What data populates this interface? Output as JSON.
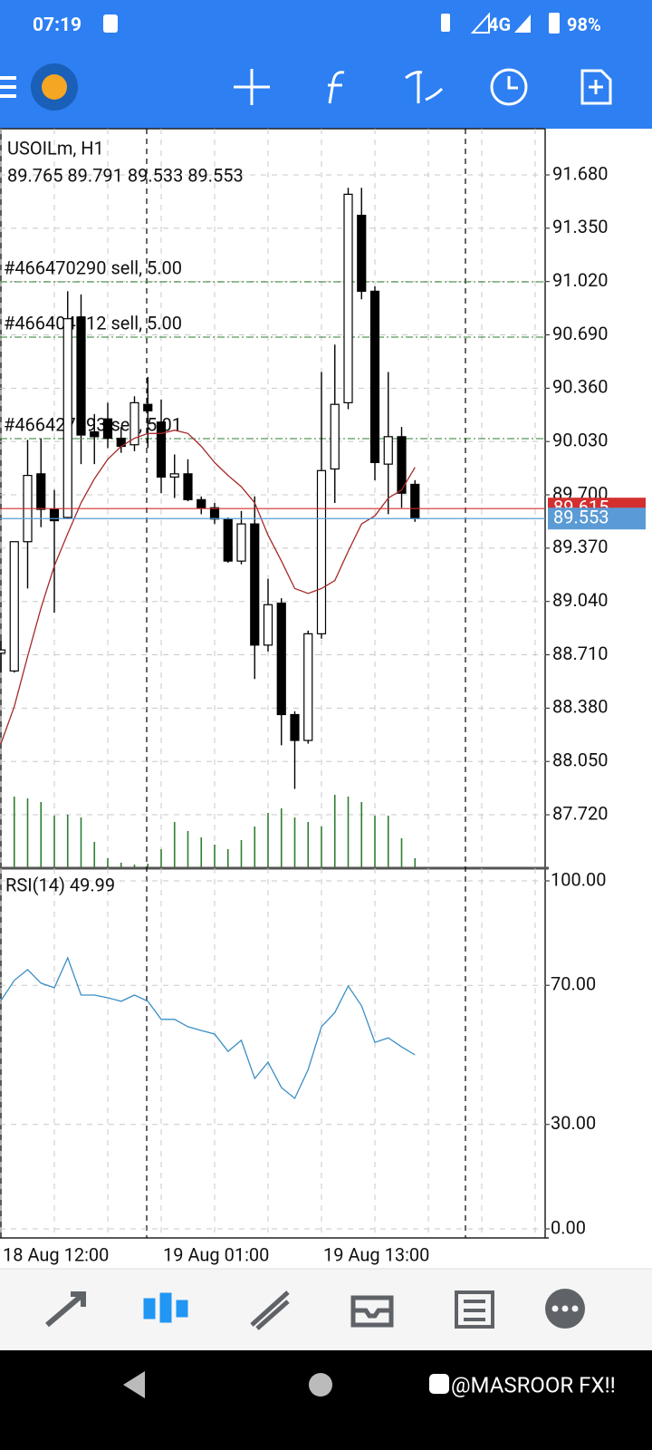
{
  "status_bar": {
    "time": "07:19",
    "network": "4G",
    "battery": "98%"
  },
  "watermark": "@MASROOR FX!!",
  "chart_data": [
    {
      "type": "candlestick",
      "title": "USOILm, H1",
      "subtitle": "89.765 89.791 89.533 89.553",
      "categories": [
        "18 Aug 12:00",
        null,
        null,
        null,
        null,
        null,
        null,
        null,
        null,
        null,
        null,
        null,
        "19 Aug 01:00",
        null,
        null,
        null,
        null,
        null,
        null,
        null,
        null,
        null,
        null,
        null,
        "19 Aug 13:00",
        null,
        null,
        null,
        null,
        null,
        null,
        null
      ],
      "open": [
        88.72,
        88.61,
        89.41,
        89.83,
        89.61,
        89.56,
        90.8,
        90.09,
        90.17,
        90.05,
        90.01,
        90.26,
        90.15,
        89.81,
        89.83,
        89.67,
        89.62,
        89.55,
        89.29,
        89.52,
        88.77,
        89.03,
        88.34,
        88.18,
        88.84,
        89.86,
        90.27,
        91.43,
        90.96,
        89.89,
        90.06,
        89.765
      ],
      "high": [
        88.8,
        89.41,
        90.04,
        90.05,
        89.73,
        90.96,
        90.94,
        90.2,
        90.27,
        90.12,
        90.31,
        90.43,
        90.29,
        89.95,
        89.92,
        89.69,
        89.65,
        89.56,
        89.6,
        89.69,
        89.18,
        89.06,
        88.36,
        88.86,
        90.46,
        90.63,
        91.6,
        91.6,
        90.99,
        90.46,
        90.12,
        89.791
      ],
      "low": [
        88.6,
        88.6,
        89.12,
        89.5,
        88.97,
        89.55,
        89.89,
        89.89,
        89.99,
        89.96,
        89.97,
        89.99,
        89.71,
        89.68,
        89.66,
        89.58,
        89.52,
        89.28,
        89.27,
        88.56,
        88.73,
        88.15,
        87.88,
        88.16,
        88.81,
        89.65,
        90.23,
        90.91,
        89.79,
        89.58,
        89.62,
        89.533
      ],
      "close": [
        88.74,
        89.41,
        89.82,
        89.61,
        89.54,
        90.79,
        90.07,
        90.06,
        90.05,
        90.0,
        90.27,
        90.22,
        89.81,
        89.83,
        89.67,
        89.62,
        89.55,
        89.29,
        89.52,
        88.77,
        89.02,
        88.34,
        88.18,
        88.84,
        89.85,
        90.26,
        91.56,
        90.96,
        89.9,
        90.06,
        89.71,
        89.553
      ],
      "color_up": "#ffffff",
      "color_down": "#000000",
      "ma": {
        "color": "#a52a2a",
        "values": [
          88.16,
          88.39,
          88.7,
          89.0,
          89.26,
          89.46,
          89.65,
          89.8,
          89.92,
          90.0,
          90.05,
          90.08,
          90.08,
          90.1,
          90.08,
          90.0,
          89.9,
          89.82,
          89.75,
          89.65,
          89.45,
          89.29,
          89.12,
          89.09,
          89.12,
          89.17,
          89.35,
          89.52,
          89.57,
          89.68,
          89.73,
          89.87
        ]
      },
      "volume": {
        "color": "#2e7d32",
        "ylim": [
          0,
          120
        ],
        "values": [
          0,
          78,
          76,
          72,
          57,
          58,
          55,
          28,
          10,
          5,
          3,
          4,
          20,
          50,
          40,
          33,
          25,
          20,
          30,
          45,
          60,
          65,
          55,
          50,
          45,
          80,
          78,
          72,
          57,
          57,
          32,
          10
        ]
      },
      "ylim": [
        87.395,
        91.966
      ],
      "yticks": [
        {
          "value": 91.68,
          "label": "91.680"
        },
        {
          "value": 91.35,
          "label": "91.350"
        },
        {
          "value": 91.02,
          "label": "91.020"
        },
        {
          "value": 90.69,
          "label": "90.690"
        },
        {
          "value": 90.36,
          "label": "90.360"
        },
        {
          "value": 90.03,
          "label": "90.030"
        },
        {
          "value": 89.7,
          "label": "89.700"
        },
        {
          "value": 89.37,
          "label": "89.370"
        },
        {
          "value": 89.04,
          "label": "89.040"
        },
        {
          "value": 88.71,
          "label": "88.710"
        },
        {
          "value": 88.38,
          "label": "88.380"
        },
        {
          "value": 88.05,
          "label": "88.050"
        },
        {
          "value": 87.72,
          "label": "87.720"
        }
      ],
      "grid": true,
      "price_lines": [
        {
          "value": 91.018,
          "label": "#466470290 sell, 5.00",
          "color": "#2e7d32"
        },
        {
          "value": 90.676,
          "label": "#466404512 sell, 5.00",
          "color": "#2e7d32"
        },
        {
          "value": 90.048,
          "label": "#466427793 sell, 5.01",
          "color": "#2e7d32"
        }
      ],
      "ask": {
        "value": 89.615,
        "label": "89.615",
        "color": "#d32f2f"
      },
      "bid": {
        "value": 89.553,
        "label": "89.553",
        "color": "#5b9bd5"
      }
    },
    {
      "type": "line",
      "title": "RSI(14) 49.99",
      "series": [
        {
          "color": "#3b8fc4",
          "values": [
            65.6,
            71.4,
            74.5,
            70.6,
            69.3,
            77.9,
            67.2,
            67.2,
            66.4,
            65.4,
            67.2,
            65.4,
            60.2,
            60.2,
            58.1,
            57.0,
            56.0,
            51.0,
            54.2,
            43.2,
            47.9,
            40.6,
            37.5,
            45.8,
            58.1,
            62.2,
            69.8,
            64.1,
            53.6,
            54.9,
            52.3,
            49.99
          ]
        }
      ],
      "ylim": [
        0,
        100
      ],
      "yticks": [
        {
          "value": 100,
          "label": "100.00"
        },
        {
          "value": 70,
          "label": "70.00"
        },
        {
          "value": 30,
          "label": "30.00"
        },
        {
          "value": 0,
          "label": "0.00"
        }
      ],
      "grid": true
    }
  ]
}
